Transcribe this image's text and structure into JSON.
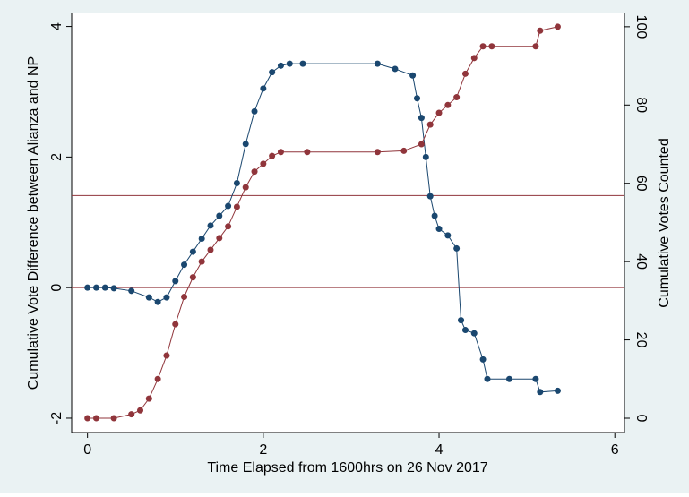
{
  "chart_data": {
    "type": "line",
    "xlabel": "Time Elapsed from 1600hrs on 26 Nov 2017",
    "ylabel": "Cumulative Vote Difference between Alianza and NP",
    "y2label": "Cumulative Votes Counted",
    "xlim": [
      -0.18,
      6.11
    ],
    "xticks": [
      0,
      2,
      4,
      6
    ],
    "ylim": [
      -2.22,
      4.2
    ],
    "yticks": [
      -2,
      0,
      2,
      4
    ],
    "y2lim": [
      -3.66,
      103.4
    ],
    "y2ticks": [
      0,
      20,
      40,
      60,
      80,
      100
    ],
    "hlines": [
      0,
      1.41
    ],
    "hline_color": "#90353b",
    "series": [
      {
        "color": "#1a476f",
        "axis": "y",
        "x": [
          0,
          0.1,
          0.2,
          0.3,
          0.5,
          0.7,
          0.8,
          0.9,
          1.0,
          1.1,
          1.2,
          1.3,
          1.4,
          1.5,
          1.6,
          1.7,
          1.8,
          1.9,
          2.0,
          2.1,
          2.2,
          2.3,
          2.45,
          3.3,
          3.5,
          3.7,
          3.75,
          3.8,
          3.85,
          3.9,
          3.95,
          4.0,
          4.1,
          4.2,
          4.25,
          4.3,
          4.4,
          4.5,
          4.55,
          4.8,
          5.1,
          5.15,
          5.35
        ],
        "values": [
          0,
          0,
          0,
          -0.01,
          -0.05,
          -0.15,
          -0.22,
          -0.15,
          0.1,
          0.35,
          0.55,
          0.75,
          0.95,
          1.1,
          1.25,
          1.6,
          2.2,
          2.7,
          3.05,
          3.3,
          3.4,
          3.43,
          3.43,
          3.43,
          3.35,
          3.25,
          2.9,
          2.6,
          2.0,
          1.4,
          1.1,
          0.9,
          0.8,
          0.6,
          -0.5,
          -0.65,
          -0.7,
          -1.1,
          -1.4,
          -1.4,
          -1.4,
          -1.6,
          -1.58
        ]
      },
      {
        "color": "#90353b",
        "axis": "y2",
        "x": [
          0,
          0.1,
          0.3,
          0.5,
          0.6,
          0.7,
          0.8,
          0.9,
          1.0,
          1.1,
          1.2,
          1.3,
          1.4,
          1.5,
          1.6,
          1.7,
          1.8,
          1.9,
          2.0,
          2.1,
          2.2,
          2.5,
          3.3,
          3.6,
          3.8,
          3.9,
          4.0,
          4.1,
          4.2,
          4.3,
          4.4,
          4.5,
          4.6,
          5.1,
          5.15,
          5.35
        ],
        "values": [
          0,
          0,
          0,
          1,
          2,
          5,
          10,
          16,
          24,
          31,
          36,
          40,
          43,
          46,
          49,
          54,
          59,
          63,
          65,
          67,
          68,
          68,
          68,
          68.3,
          70,
          75,
          78,
          80,
          82,
          88,
          92,
          95,
          95,
          95,
          99,
          100
        ]
      }
    ]
  }
}
